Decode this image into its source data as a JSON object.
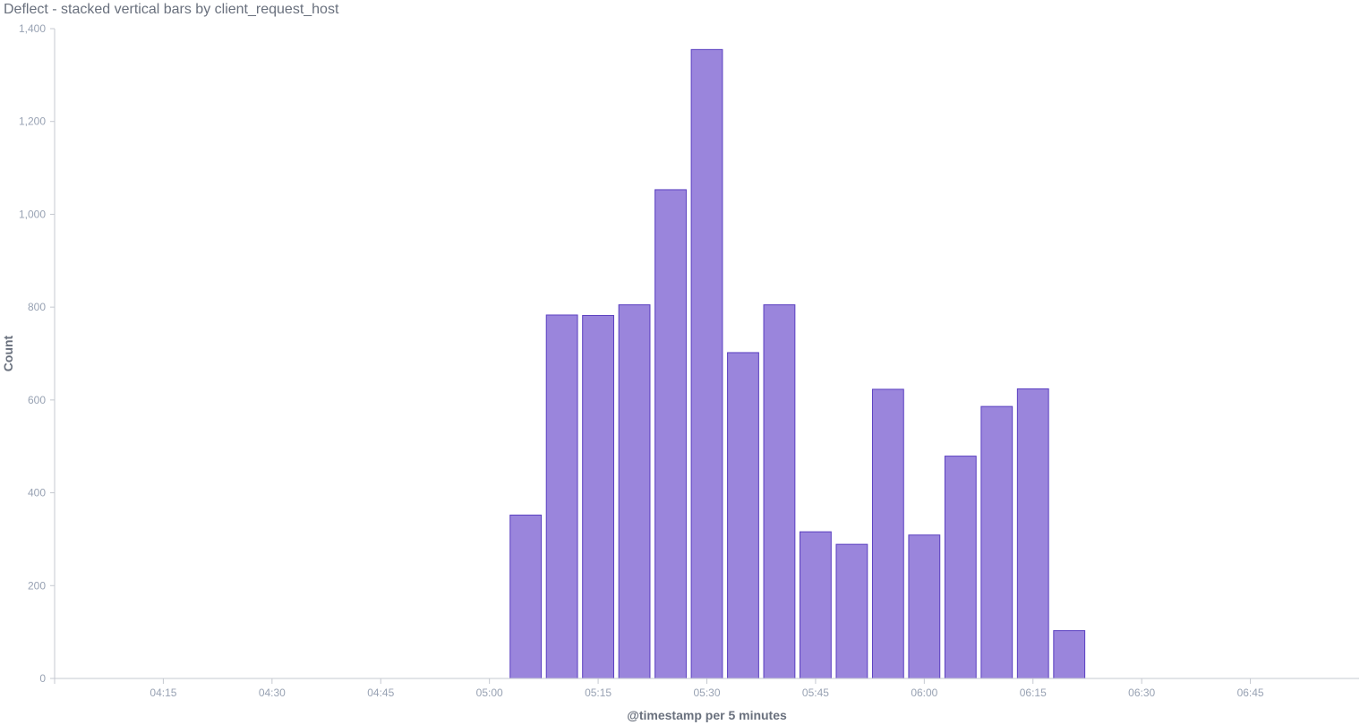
{
  "title": "Deflect - stacked vertical bars by client_request_host",
  "chart_data": {
    "type": "bar",
    "title": "Deflect - stacked vertical bars by client_request_host",
    "xlabel": "@timestamp per 5 minutes",
    "ylabel": "Count",
    "ylim": [
      0,
      1400
    ],
    "yticks": [
      0,
      200,
      400,
      600,
      800,
      1000,
      1200,
      1400
    ],
    "ytick_labels": [
      "0",
      "200",
      "400",
      "600",
      "800",
      "1,000",
      "1,200",
      "1,400"
    ],
    "xticks": [
      "04:15",
      "04:30",
      "04:45",
      "05:00",
      "05:15",
      "05:30",
      "05:45",
      "06:00",
      "06:15",
      "06:30",
      "06:45"
    ],
    "x_range": [
      "04:00",
      "07:00"
    ],
    "grid": false,
    "bar_color": "#9a85dc",
    "bar_edge_color": "#5a3fc0",
    "categories": [
      "05:05",
      "05:10",
      "05:15",
      "05:20",
      "05:25",
      "05:30",
      "05:35",
      "05:40",
      "05:45",
      "05:50",
      "05:55",
      "06:00",
      "06:05",
      "06:10",
      "06:15",
      "06:20"
    ],
    "values": [
      352,
      783,
      782,
      805,
      1053,
      1355,
      702,
      805,
      316,
      289,
      623,
      309,
      479,
      586,
      624,
      103
    ]
  }
}
